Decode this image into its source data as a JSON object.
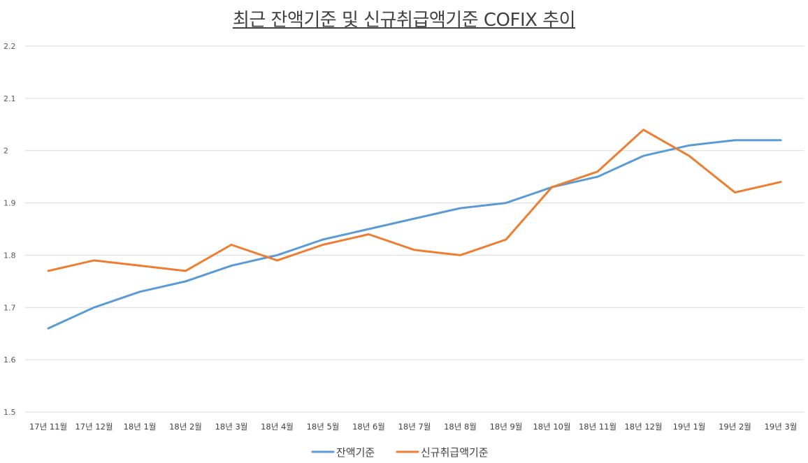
{
  "chart_data": {
    "type": "line",
    "title": "최근 잔액기준 및 신규취급액기준 COFIX 추이",
    "xlabel": "",
    "ylabel": "",
    "ylim": [
      1.5,
      2.2
    ],
    "yticks": [
      "1.5",
      "1.6",
      "1.7",
      "1.8",
      "1.9",
      "2",
      "2.1",
      "2.2"
    ],
    "grid": true,
    "legend_position": "bottom",
    "categories": [
      "17년 11월",
      "17년 12월",
      "18년 1월",
      "18년 2월",
      "18년 3월",
      "18년 4월",
      "18년 5월",
      "18년 6월",
      "18년 7월",
      "18년 8월",
      "18년 9월",
      "18년 10월",
      "18년 11월",
      "18년 12월",
      "19년 1월",
      "19년 2월",
      "19년 3월"
    ],
    "series": [
      {
        "name": "잔액기준",
        "color": "#5b9bd5",
        "values": [
          1.66,
          1.7,
          1.73,
          1.75,
          1.78,
          1.8,
          1.83,
          1.85,
          1.87,
          1.89,
          1.9,
          1.93,
          1.95,
          1.99,
          2.01,
          2.02,
          2.02
        ]
      },
      {
        "name": "신규취급액기준",
        "color": "#ed7d31",
        "values": [
          1.77,
          1.79,
          1.78,
          1.77,
          1.82,
          1.79,
          1.82,
          1.84,
          1.81,
          1.8,
          1.83,
          1.93,
          1.96,
          2.04,
          1.99,
          1.92,
          1.94
        ]
      }
    ]
  }
}
